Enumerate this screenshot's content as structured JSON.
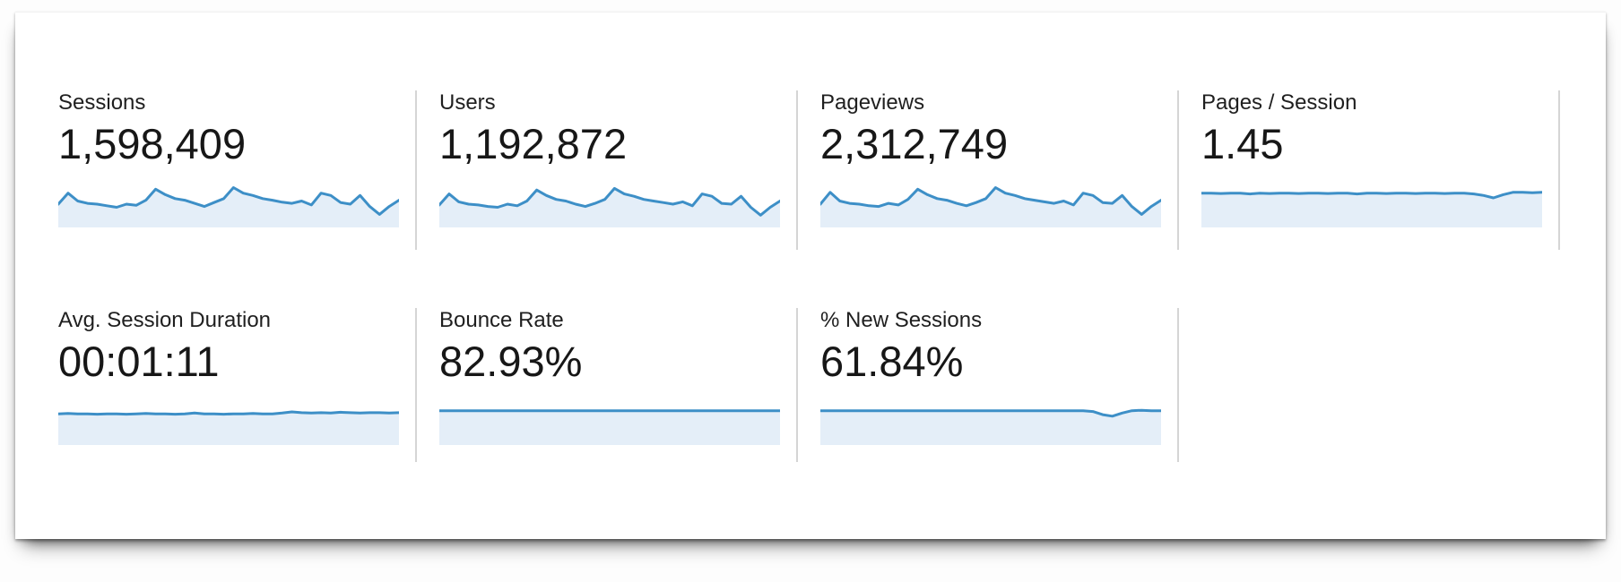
{
  "panel": {
    "name": "analytics-metric-summary"
  },
  "theme": {
    "spark_line_color": "#3d8fc7",
    "spark_fill_color": "#e4eef8",
    "divider_color": "#d5d5d5",
    "label_color": "#1f1f1f",
    "value_color": "#171717",
    "card_background": "#ffffff"
  },
  "rows": [
    {
      "name": "row-1",
      "metrics": [
        {
          "label": "Sessions",
          "value": "1,598,409",
          "spark": [
            0.5,
            0.78,
            0.58,
            0.52,
            0.5,
            0.46,
            0.42,
            0.5,
            0.47,
            0.6,
            0.88,
            0.74,
            0.64,
            0.6,
            0.52,
            0.44,
            0.54,
            0.64,
            0.92,
            0.78,
            0.72,
            0.64,
            0.6,
            0.55,
            0.52,
            0.58,
            0.48,
            0.78,
            0.72,
            0.54,
            0.5,
            0.72,
            0.44,
            0.24,
            0.44,
            0.6
          ]
        },
        {
          "label": "Users",
          "value": "1,192,872",
          "spark": [
            0.48,
            0.76,
            0.56,
            0.5,
            0.48,
            0.44,
            0.42,
            0.5,
            0.46,
            0.58,
            0.86,
            0.72,
            0.62,
            0.58,
            0.5,
            0.44,
            0.52,
            0.62,
            0.9,
            0.76,
            0.7,
            0.62,
            0.58,
            0.54,
            0.5,
            0.56,
            0.46,
            0.76,
            0.7,
            0.52,
            0.5,
            0.7,
            0.42,
            0.22,
            0.42,
            0.58
          ]
        },
        {
          "label": "Pageviews",
          "value": "2,312,749",
          "spark": [
            0.5,
            0.8,
            0.58,
            0.52,
            0.5,
            0.46,
            0.44,
            0.52,
            0.48,
            0.62,
            0.88,
            0.74,
            0.64,
            0.6,
            0.52,
            0.46,
            0.54,
            0.64,
            0.92,
            0.78,
            0.72,
            0.64,
            0.6,
            0.56,
            0.52,
            0.58,
            0.48,
            0.78,
            0.72,
            0.54,
            0.52,
            0.72,
            0.44,
            0.24,
            0.44,
            0.6
          ]
        },
        {
          "label": "Pages / Session",
          "value": "1.45",
          "spark": [
            0.78,
            0.78,
            0.77,
            0.78,
            0.78,
            0.76,
            0.78,
            0.77,
            0.78,
            0.78,
            0.77,
            0.78,
            0.78,
            0.77,
            0.78,
            0.78,
            0.76,
            0.78,
            0.78,
            0.77,
            0.78,
            0.78,
            0.77,
            0.78,
            0.78,
            0.77,
            0.78,
            0.78,
            0.76,
            0.72,
            0.66,
            0.74,
            0.8,
            0.8,
            0.79,
            0.8
          ]
        }
      ]
    },
    {
      "name": "row-2",
      "metrics": [
        {
          "label": "Avg. Session Duration",
          "value": "00:01:11",
          "spark": [
            0.7,
            0.71,
            0.7,
            0.7,
            0.69,
            0.7,
            0.7,
            0.69,
            0.7,
            0.71,
            0.7,
            0.7,
            0.69,
            0.7,
            0.72,
            0.7,
            0.7,
            0.69,
            0.7,
            0.7,
            0.71,
            0.7,
            0.7,
            0.72,
            0.75,
            0.73,
            0.72,
            0.73,
            0.72,
            0.74,
            0.73,
            0.72,
            0.73,
            0.73,
            0.72,
            0.73
          ]
        },
        {
          "label": "Bounce Rate",
          "value": "82.93%",
          "spark": [
            0.78,
            0.78,
            0.78,
            0.78,
            0.78,
            0.78,
            0.78,
            0.78,
            0.78,
            0.78,
            0.78,
            0.78,
            0.78,
            0.78,
            0.78,
            0.78,
            0.78,
            0.78,
            0.78,
            0.78,
            0.78,
            0.78,
            0.78,
            0.78,
            0.78,
            0.78,
            0.78,
            0.78,
            0.78,
            0.78,
            0.78,
            0.78,
            0.78,
            0.78,
            0.78,
            0.78
          ]
        },
        {
          "label": "% New Sessions",
          "value": "61.84%",
          "spark": [
            0.78,
            0.78,
            0.78,
            0.78,
            0.78,
            0.78,
            0.78,
            0.78,
            0.78,
            0.78,
            0.78,
            0.78,
            0.78,
            0.78,
            0.78,
            0.78,
            0.78,
            0.78,
            0.78,
            0.78,
            0.78,
            0.78,
            0.78,
            0.78,
            0.78,
            0.78,
            0.78,
            0.78,
            0.76,
            0.68,
            0.64,
            0.72,
            0.78,
            0.79,
            0.78,
            0.78
          ]
        }
      ]
    }
  ]
}
